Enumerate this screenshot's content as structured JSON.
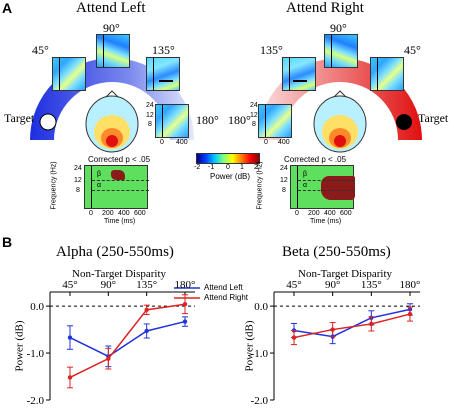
{
  "panel_a": {
    "letter": "A",
    "left": {
      "title": "Attend Left",
      "angles": [
        "90°",
        "45°",
        "135°",
        "180°"
      ],
      "target_label": "Target",
      "freq_ticks": [
        "24",
        "12",
        "8"
      ],
      "time_ticks": [
        "0",
        "400"
      ],
      "stat_title": "Corrected p < .05",
      "stat_freq_ticks": [
        "24",
        "12",
        "8"
      ],
      "stat_time_ticks": [
        "0",
        "200",
        "400",
        "600"
      ],
      "stat_ylabel": "Frequency (Hz)",
      "stat_xlabel": "Time (ms)",
      "beta": "β",
      "alpha": "α"
    },
    "right": {
      "title": "Attend Right",
      "angles": [
        "90°",
        "135°",
        "45°",
        "180°"
      ],
      "target_label": "Target",
      "freq_ticks": [
        "24",
        "12",
        "8"
      ],
      "time_ticks": [
        "0",
        "400"
      ],
      "stat_title": "Corrected p < .05",
      "stat_freq_ticks": [
        "24",
        "12",
        "8"
      ],
      "stat_time_ticks": [
        "0",
        "200",
        "400",
        "600"
      ],
      "stat_ylabel": "Frequency (Hz)",
      "stat_xlabel": "Time (ms)",
      "beta": "β",
      "alpha": "α"
    },
    "colorbar": {
      "ticks": [
        "-2",
        "-1",
        "0",
        "1",
        "2"
      ],
      "label": "Power (dB)"
    }
  },
  "panel_b": {
    "letter": "B",
    "colors": {
      "attend_left": "#2233dd",
      "attend_right": "#dd2222"
    },
    "chart_data": [
      {
        "type": "line",
        "title": "Alpha (250-550ms)",
        "xlabel": "Non-Target Disparity",
        "ylabel": "Power (dB)",
        "categories": [
          "45°",
          "90°",
          "135°",
          "180°"
        ],
        "ylim": [
          -2.0,
          0.3
        ],
        "yticks": [
          "0.0",
          "-1.0",
          "-2.0"
        ],
        "series": [
          {
            "name": "Attend Left",
            "values": [
              -0.67,
              -1.07,
              -0.53,
              -0.33
            ],
            "errors": [
              0.25,
              0.22,
              0.15,
              0.1
            ]
          },
          {
            "name": "Attend Right",
            "values": [
              -1.52,
              -1.12,
              -0.08,
              0.04
            ],
            "errors": [
              0.22,
              0.22,
              0.1,
              0.2
            ]
          }
        ],
        "legend": "top-right"
      },
      {
        "type": "line",
        "title": "Beta (250-550ms)",
        "xlabel": "Non-Target Disparity",
        "ylabel": "Power (dB)",
        "categories": [
          "45°",
          "90°",
          "135°",
          "180°"
        ],
        "ylim": [
          -2.0,
          0.3
        ],
        "yticks": [
          "0.0",
          "-1.0",
          "-2.0"
        ],
        "series": [
          {
            "name": "Attend Left",
            "values": [
              -0.52,
              -0.65,
              -0.25,
              -0.07
            ],
            "errors": [
              0.15,
              0.15,
              0.15,
              0.12
            ]
          },
          {
            "name": "Attend Right",
            "values": [
              -0.67,
              -0.5,
              -0.38,
              -0.17
            ],
            "errors": [
              0.15,
              0.15,
              0.15,
              0.15
            ]
          }
        ]
      }
    ],
    "legend": {
      "left": "Attend Left",
      "right": "Attend Right"
    }
  }
}
